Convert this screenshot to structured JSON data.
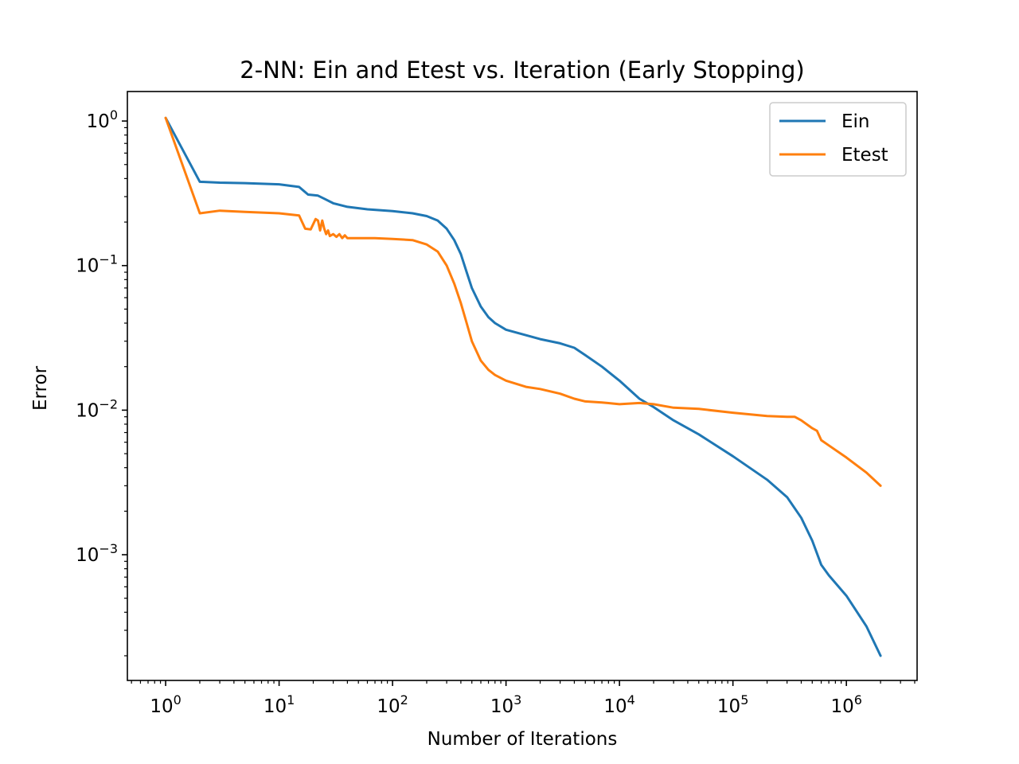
{
  "chart_data": {
    "type": "line",
    "title": "2-NN: Ein and Etest vs. Iteration (Early Stopping)",
    "xlabel": "Number of Iterations",
    "ylabel": "Error",
    "xscale": "log",
    "yscale": "log",
    "xlim": [
      0.46,
      4200000
    ],
    "ylim": [
      0.000135,
      1.6
    ],
    "grid": false,
    "legend_position": "top-right",
    "x_ticks": [
      {
        "value": 1,
        "base": "10",
        "exp": "0"
      },
      {
        "value": 10,
        "base": "10",
        "exp": "1"
      },
      {
        "value": 100,
        "base": "10",
        "exp": "2"
      },
      {
        "value": 1000,
        "base": "10",
        "exp": "3"
      },
      {
        "value": 10000,
        "base": "10",
        "exp": "4"
      },
      {
        "value": 100000,
        "base": "10",
        "exp": "5"
      },
      {
        "value": 1000000,
        "base": "10",
        "exp": "6"
      }
    ],
    "y_ticks": [
      {
        "value": 1,
        "base": "10",
        "exp": "0"
      },
      {
        "value": 0.1,
        "base": "10",
        "exp": "−1"
      },
      {
        "value": 0.01,
        "base": "10",
        "exp": "−2"
      },
      {
        "value": 0.001,
        "base": "10",
        "exp": "−3"
      }
    ],
    "series": [
      {
        "name": "Ein",
        "color": "#1f77b4",
        "x": [
          1,
          2,
          3,
          5,
          10,
          15,
          18,
          22,
          25,
          30,
          40,
          60,
          100,
          150,
          200,
          250,
          300,
          350,
          400,
          450,
          500,
          600,
          700,
          800,
          1000,
          1500,
          2000,
          3000,
          4000,
          5000,
          7000,
          10000,
          15000,
          20000,
          30000,
          50000,
          100000,
          200000,
          300000,
          400000,
          500000,
          600000,
          700000,
          1000000,
          1500000,
          2000000
        ],
        "y": [
          1.05,
          0.38,
          0.375,
          0.372,
          0.365,
          0.35,
          0.31,
          0.305,
          0.29,
          0.27,
          0.255,
          0.245,
          0.238,
          0.23,
          0.22,
          0.205,
          0.18,
          0.15,
          0.12,
          0.09,
          0.07,
          0.052,
          0.044,
          0.04,
          0.036,
          0.033,
          0.031,
          0.029,
          0.027,
          0.024,
          0.02,
          0.016,
          0.012,
          0.0105,
          0.0085,
          0.0068,
          0.0048,
          0.0033,
          0.0025,
          0.0018,
          0.00125,
          0.00085,
          0.00072,
          0.00052,
          0.00032,
          0.0002
        ]
      },
      {
        "name": "Etest",
        "color": "#ff7f0e",
        "x": [
          1,
          2,
          3,
          5,
          10,
          15,
          17,
          19,
          21,
          22,
          23,
          24,
          25,
          26,
          27,
          28,
          30,
          32,
          34,
          36,
          38,
          40,
          50,
          70,
          100,
          150,
          200,
          250,
          300,
          350,
          400,
          450,
          500,
          600,
          700,
          800,
          1000,
          1500,
          2000,
          3000,
          4000,
          5000,
          7000,
          10000,
          15000,
          20000,
          30000,
          50000,
          100000,
          200000,
          300000,
          350000,
          400000,
          500000,
          550000,
          600000,
          700000,
          1000000,
          1500000,
          2000000
        ],
        "y": [
          1.05,
          0.23,
          0.24,
          0.235,
          0.23,
          0.222,
          0.18,
          0.178,
          0.21,
          0.205,
          0.175,
          0.205,
          0.18,
          0.165,
          0.175,
          0.16,
          0.165,
          0.158,
          0.165,
          0.155,
          0.162,
          0.155,
          0.155,
          0.155,
          0.153,
          0.15,
          0.14,
          0.125,
          0.1,
          0.075,
          0.055,
          0.04,
          0.03,
          0.022,
          0.019,
          0.0175,
          0.016,
          0.0145,
          0.014,
          0.013,
          0.012,
          0.0115,
          0.0113,
          0.011,
          0.0112,
          0.011,
          0.0104,
          0.0102,
          0.0096,
          0.0091,
          0.009,
          0.009,
          0.0085,
          0.0075,
          0.0072,
          0.0062,
          0.0057,
          0.0047,
          0.0037,
          0.003
        ]
      }
    ]
  }
}
